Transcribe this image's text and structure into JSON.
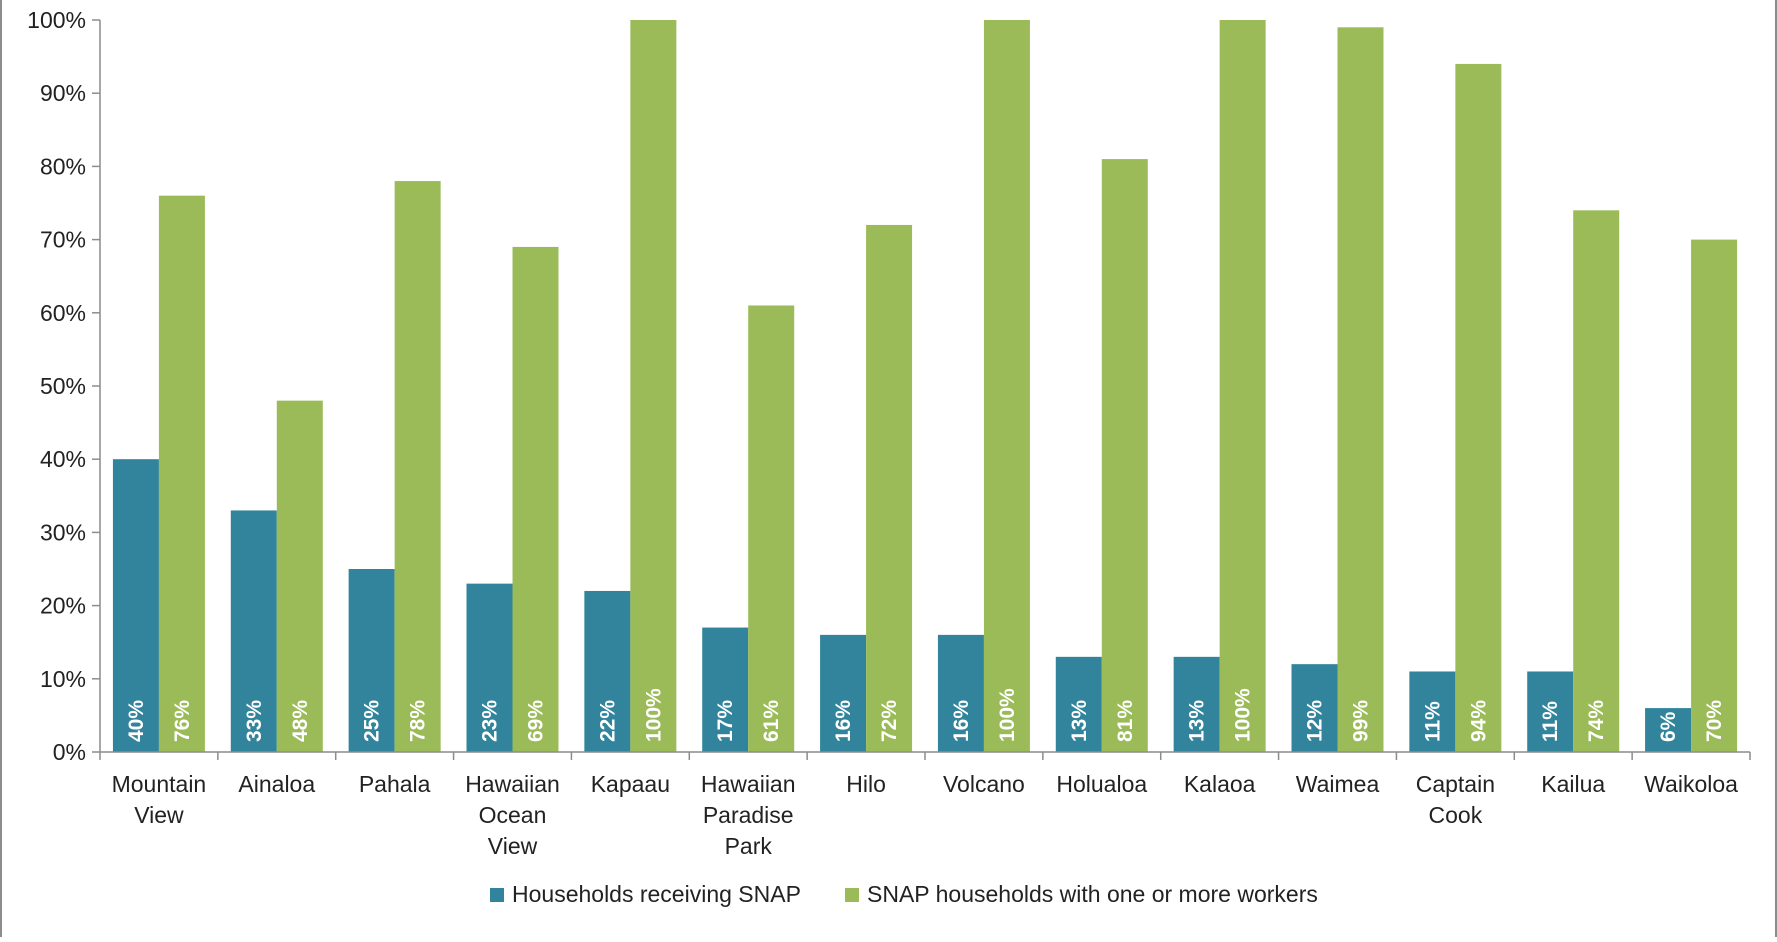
{
  "chart_data": {
    "type": "bar",
    "title": "",
    "xlabel": "",
    "ylabel": "",
    "ylim": [
      0,
      100
    ],
    "y_ticks": [
      "0%",
      "10%",
      "20%",
      "30%",
      "40%",
      "50%",
      "60%",
      "70%",
      "80%",
      "90%",
      "100%"
    ],
    "grid": false,
    "legend_position": "bottom",
    "categories": [
      [
        "Mountain",
        "View"
      ],
      [
        "Ainaloa"
      ],
      [
        "Pahala"
      ],
      [
        "Hawaiian",
        "Ocean",
        "View"
      ],
      [
        "Kapaau"
      ],
      [
        "Hawaiian",
        "Paradise",
        "Park"
      ],
      [
        "Hilo"
      ],
      [
        "Volcano"
      ],
      [
        "Holualoa"
      ],
      [
        "Kalaoa"
      ],
      [
        "Waimea"
      ],
      [
        "Captain",
        "Cook"
      ],
      [
        "Kailua"
      ],
      [
        "Waikoloa"
      ]
    ],
    "series": [
      {
        "name": "Households receiving SNAP",
        "color": "#31849b",
        "values": [
          40,
          33,
          25,
          23,
          22,
          17,
          16,
          16,
          13,
          13,
          12,
          11,
          11,
          6
        ],
        "labels": [
          "40%",
          "33%",
          "25%",
          "23%",
          "22%",
          "17%",
          "16%",
          "16%",
          "13%",
          "13%",
          "12%",
          "11%",
          "11%",
          "6%"
        ]
      },
      {
        "name": "SNAP households with one or more workers",
        "color": "#9bbb59",
        "values": [
          76,
          48,
          78,
          69,
          100,
          61,
          72,
          100,
          81,
          100,
          99,
          94,
          74,
          70
        ],
        "labels": [
          "76%",
          "48%",
          "78%",
          "69%",
          "100%",
          "61%",
          "72%",
          "100%",
          "81%",
          "100%",
          "99%",
          "94%",
          "74%",
          "70%"
        ]
      }
    ]
  }
}
